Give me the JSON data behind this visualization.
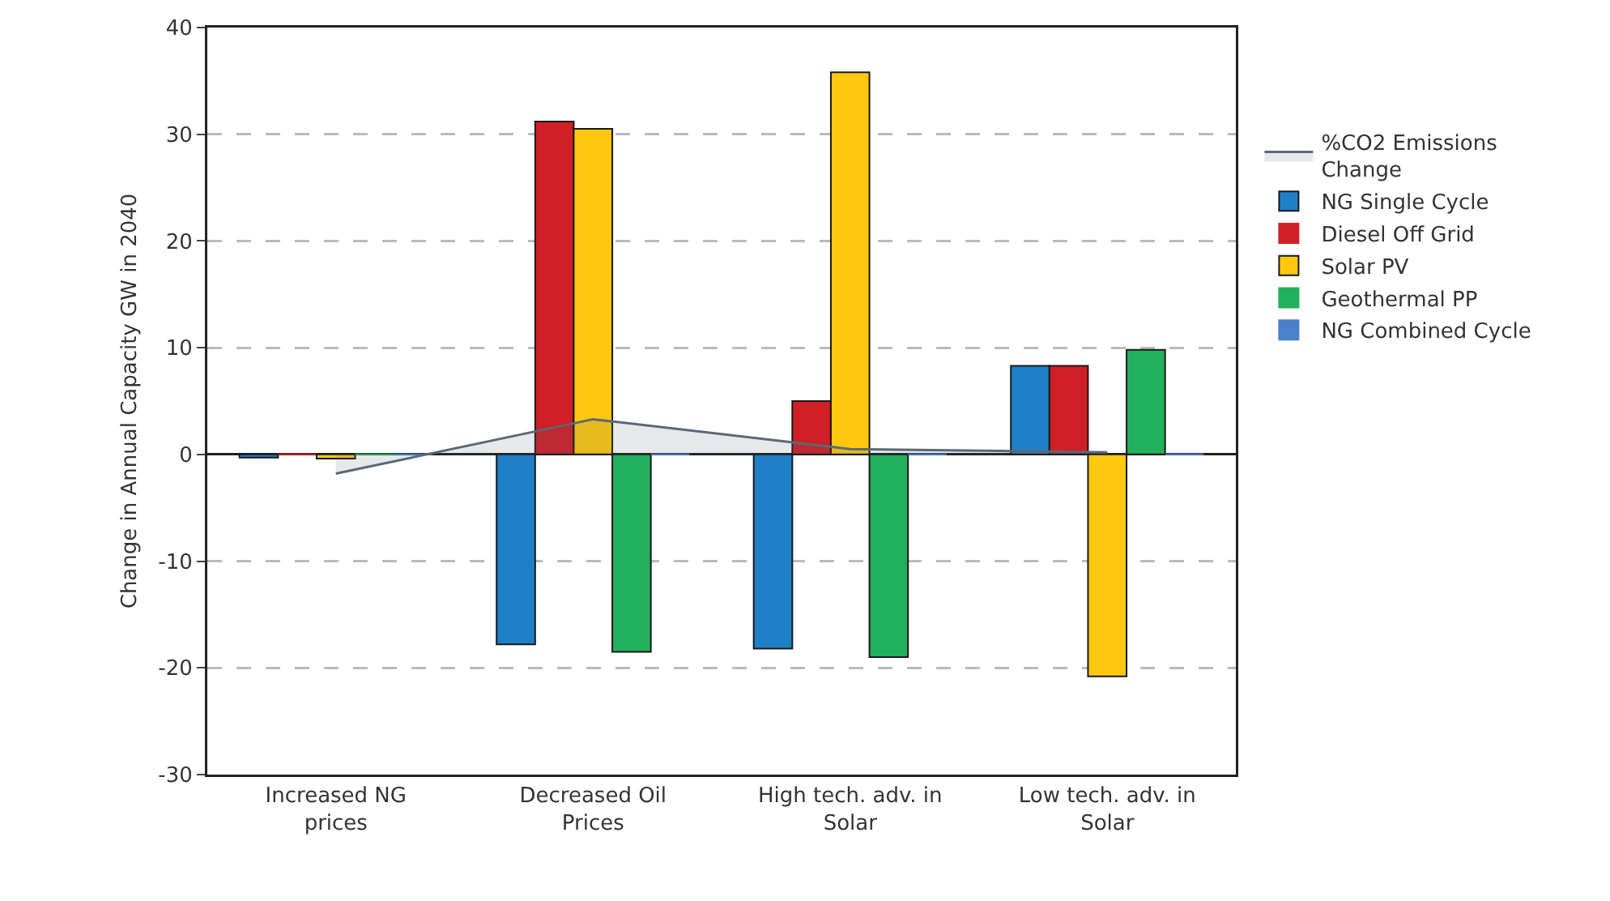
{
  "chart_data": {
    "type": "bar",
    "ylabel": "Change in Annual Capacity GW in 2040",
    "categories": [
      "Increased NG prices",
      "Decreased Oil Prices",
      "High tech. adv. in Solar",
      "Low tech. adv. in Solar"
    ],
    "series": [
      {
        "name": "%CO2 Emissions Change",
        "type": "area",
        "color": "#5a6878",
        "values": [
          -1.8,
          3.3,
          0.5,
          0.2
        ]
      },
      {
        "name": "NG Single Cycle",
        "color": "#1f80c8",
        "values": [
          -0.3,
          -17.8,
          -18.2,
          8.3
        ]
      },
      {
        "name": "Diesel Off Grid",
        "color": "#d11f26",
        "values": [
          0,
          31.2,
          5,
          8.3
        ]
      },
      {
        "name": "Solar PV",
        "color": "#ffc80f",
        "values": [
          -0.4,
          30.5,
          35.8,
          -20.8
        ]
      },
      {
        "name": "Geothermal PP",
        "color": "#22b05c",
        "values": [
          0,
          -18.5,
          -19,
          9.8
        ]
      },
      {
        "name": "NG Combined Cycle",
        "color": "#4a80cc",
        "values": [
          0,
          0,
          0,
          0
        ]
      }
    ],
    "ylim": [
      -30,
      40
    ],
    "yticks": [
      -30,
      -20,
      -10,
      0,
      10,
      20,
      30,
      40
    ],
    "grid": "y",
    "legend": "right"
  }
}
